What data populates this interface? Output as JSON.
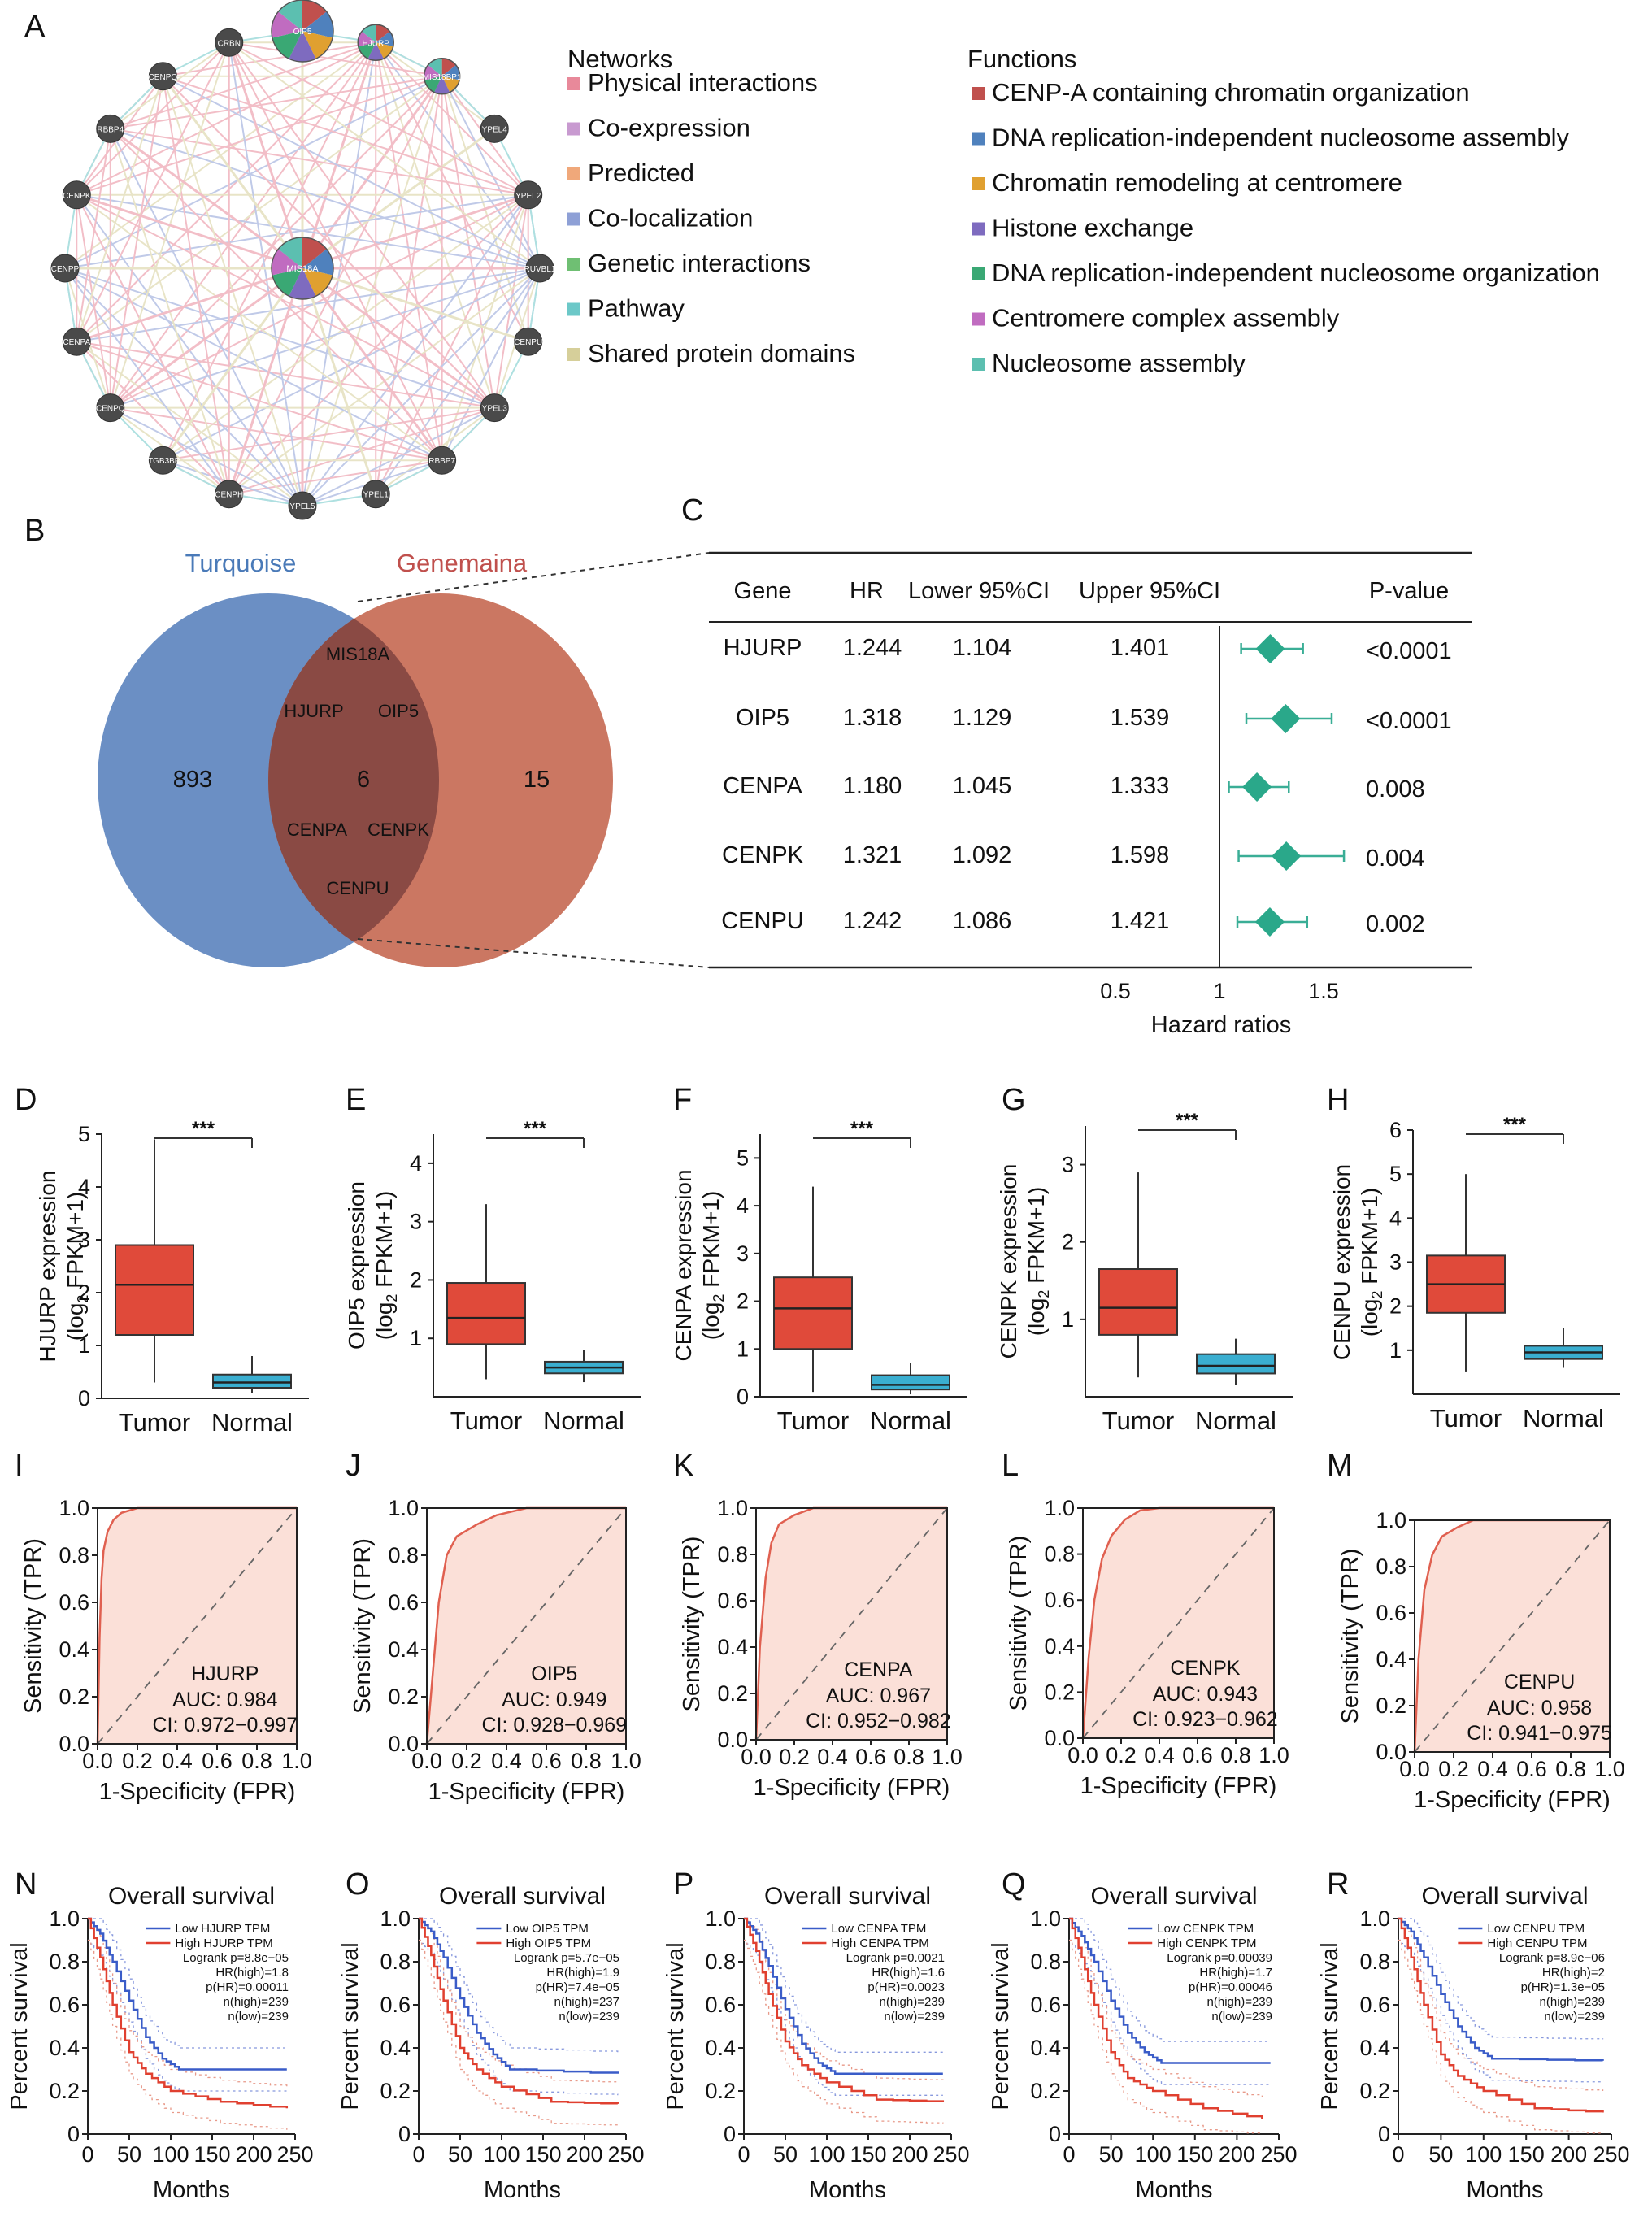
{
  "panel_letters": [
    "A",
    "B",
    "C",
    "D",
    "E",
    "F",
    "G",
    "H",
    "I",
    "J",
    "K",
    "L",
    "M",
    "N",
    "O",
    "P",
    "Q",
    "R"
  ],
  "network": {
    "center_gene": "MIS18A",
    "genes": [
      "OIP5",
      "HJURP",
      "MIS18BP1",
      "YPEL4",
      "YPEL2",
      "RUVBL1",
      "CENPU",
      "YPEL3",
      "RBBP7",
      "YPEL1",
      "YPEL5",
      "CENPH",
      "ITGB3BP",
      "CENPQ",
      "CENPA",
      "CENPP",
      "CENPK",
      "RBBP4",
      "CENPQ",
      "CRBN"
    ],
    "networks_title": "Networks",
    "networks_legend": [
      {
        "label": "Physical interactions",
        "color": "#e8899a"
      },
      {
        "label": "Co-expression",
        "color": "#c89ad0"
      },
      {
        "label": "Predicted",
        "color": "#f0a87a"
      },
      {
        "label": "Co-localization",
        "color": "#8ea0d6"
      },
      {
        "label": "Genetic interactions",
        "color": "#6fbf73"
      },
      {
        "label": "Pathway",
        "color": "#6cc8c8"
      },
      {
        "label": "Shared protein domains",
        "color": "#d6cf9a"
      }
    ],
    "functions_title": "Functions",
    "functions_legend": [
      {
        "label": "CENP-A containing chromatin organization",
        "color": "#c0504d"
      },
      {
        "label": "DNA replication-independent nucleosome assembly",
        "color": "#4f81bd"
      },
      {
        "label": "Chromatin remodeling at centromere",
        "color": "#e0a030"
      },
      {
        "label": "Histone exchange",
        "color": "#7e6bbf"
      },
      {
        "label": "DNA replication-independent nucleosome organization",
        "color": "#3aa874"
      },
      {
        "label": "Centromere complex assembly",
        "color": "#c06cc0"
      },
      {
        "label": "Nucleosome assembly",
        "color": "#5cbfb0"
      }
    ]
  },
  "venn": {
    "left_title": "Turquoise",
    "right_title": "Genemaina",
    "left_count": "893",
    "center_count": "6",
    "right_count": "15",
    "shared_genes": [
      "MIS18A",
      "HJURP",
      "OIP5",
      "CENPA",
      "CENPK",
      "CENPU"
    ]
  },
  "chart_data": [
    {
      "panel": "C",
      "type": "table",
      "headers": [
        "Gene",
        "HR",
        "Lower 95%CI",
        "Upper 95%CI",
        "P-value"
      ],
      "rows": [
        {
          "gene": "HJURP",
          "hr": "1.244",
          "lower": "1.104",
          "upper": "1.401",
          "p": "<0.0001",
          "v": 1.244,
          "lo": 1.104,
          "hi": 1.401
        },
        {
          "gene": "OIP5",
          "hr": "1.318",
          "lower": "1.129",
          "upper": "1.539",
          "p": "<0.0001",
          "v": 1.318,
          "lo": 1.129,
          "hi": 1.539
        },
        {
          "gene": "CENPA",
          "hr": "1.180",
          "lower": "1.045",
          "upper": "1.333",
          "p": "0.008",
          "v": 1.18,
          "lo": 1.045,
          "hi": 1.333
        },
        {
          "gene": "CENPK",
          "hr": "1.321",
          "lower": "1.092",
          "upper": "1.598",
          "p": "0.004",
          "v": 1.321,
          "lo": 1.092,
          "hi": 1.598
        },
        {
          "gene": "CENPU",
          "hr": "1.242",
          "lower": "1.086",
          "upper": "1.421",
          "p": "0.002",
          "v": 1.242,
          "lo": 1.086,
          "hi": 1.421
        }
      ],
      "xlabel": "Hazard ratios",
      "xticks": [
        "0.5",
        "1",
        "1.5"
      ],
      "xlim": [
        0.5,
        1.5
      ]
    },
    {
      "panel": "D",
      "type": "box",
      "ylabel_main": "HJURP expression",
      "ylabel_sub": "(log",
      "ylabel_sub2": "2",
      "ylabel_sub3": " FPKM+1)",
      "categories": [
        "Tumor",
        "Normal"
      ],
      "ylim": [
        0,
        5
      ],
      "yticks": [
        "0",
        "1",
        "2",
        "3",
        "4",
        "5"
      ],
      "sig": "***",
      "boxes": [
        {
          "q1": 1.2,
          "median": 2.15,
          "q3": 2.9,
          "lo": 0.3,
          "hi": 4.9
        },
        {
          "q1": 0.2,
          "median": 0.3,
          "q3": 0.45,
          "lo": 0.1,
          "hi": 0.8
        }
      ]
    },
    {
      "panel": "E",
      "type": "box",
      "ylabel_main": "OIP5 expression",
      "ylabel_sub": "(log",
      "ylabel_sub2": "2",
      "ylabel_sub3": " FPKM+1)",
      "categories": [
        "Tumor",
        "Normal"
      ],
      "ylim": [
        0,
        4.5
      ],
      "yticks": [
        "1",
        "2",
        "3",
        "4"
      ],
      "sig": "***",
      "boxes": [
        {
          "q1": 0.9,
          "median": 1.35,
          "q3": 1.95,
          "lo": 0.3,
          "hi": 3.3
        },
        {
          "q1": 0.4,
          "median": 0.5,
          "q3": 0.6,
          "lo": 0.25,
          "hi": 0.8
        }
      ]
    },
    {
      "panel": "F",
      "type": "box",
      "ylabel_main": "CENPA expression",
      "ylabel_sub": "(log",
      "ylabel_sub2": "2",
      "ylabel_sub3": " FPKM+1)",
      "categories": [
        "Tumor",
        "Normal"
      ],
      "ylim": [
        0,
        5.5
      ],
      "yticks": [
        "0",
        "1",
        "2",
        "3",
        "4",
        "5"
      ],
      "sig": "***",
      "boxes": [
        {
          "q1": 1.0,
          "median": 1.85,
          "q3": 2.5,
          "lo": 0.1,
          "hi": 4.4
        },
        {
          "q1": 0.15,
          "median": 0.25,
          "q3": 0.45,
          "lo": 0.05,
          "hi": 0.7
        }
      ]
    },
    {
      "panel": "G",
      "type": "box",
      "ylabel_main": "CENPK expression",
      "ylabel_sub": "(log",
      "ylabel_sub2": "2",
      "ylabel_sub3": " FPKM+1)",
      "categories": [
        "Tumor",
        "Normal"
      ],
      "ylim": [
        0,
        3.5
      ],
      "yticks": [
        "1",
        "2",
        "3"
      ],
      "sig": "***",
      "boxes": [
        {
          "q1": 0.8,
          "median": 1.15,
          "q3": 1.65,
          "lo": 0.25,
          "hi": 2.9
        },
        {
          "q1": 0.3,
          "median": 0.4,
          "q3": 0.55,
          "lo": 0.15,
          "hi": 0.75
        }
      ]
    },
    {
      "panel": "H",
      "type": "box",
      "ylabel_main": "CENPU expression",
      "ylabel_sub": "(log",
      "ylabel_sub2": "2",
      "ylabel_sub3": " FPKM+1)",
      "categories": [
        "Tumor",
        "Normal"
      ],
      "ylim": [
        0,
        6
      ],
      "yticks": [
        "1",
        "2",
        "3",
        "4",
        "5",
        "6"
      ],
      "sig": "***",
      "boxes": [
        {
          "q1": 1.85,
          "median": 2.5,
          "q3": 3.15,
          "lo": 0.5,
          "hi": 5.0
        },
        {
          "q1": 0.8,
          "median": 0.95,
          "q3": 1.1,
          "lo": 0.6,
          "hi": 1.5
        }
      ]
    },
    {
      "panel": "I",
      "type": "roc",
      "gene": "HJURP",
      "auc": "AUC: 0.984",
      "ci": "CI: 0.972−0.997",
      "ylabel": "Sensitivity (TPR)",
      "xlabel": "1-Specificity (FPR)",
      "yticks": [
        "0.0",
        "0.2",
        "0.4",
        "0.6",
        "0.8",
        "1.0"
      ],
      "xticks": [
        "0.0",
        "0.2",
        "0.4",
        "0.6",
        "0.8",
        "1.0"
      ],
      "curve": [
        [
          0,
          0
        ],
        [
          0.01,
          0.45
        ],
        [
          0.02,
          0.7
        ],
        [
          0.03,
          0.82
        ],
        [
          0.05,
          0.9
        ],
        [
          0.08,
          0.95
        ],
        [
          0.12,
          0.98
        ],
        [
          0.2,
          1.0
        ],
        [
          1,
          1
        ]
      ]
    },
    {
      "panel": "J",
      "type": "roc",
      "gene": "OIP5",
      "auc": "AUC: 0.949",
      "ci": "CI: 0.928−0.969",
      "ylabel": "Sensitivity (TPR)",
      "xlabel": "1-Specificity (FPR)",
      "yticks": [
        "0.0",
        "0.2",
        "0.4",
        "0.6",
        "0.8",
        "1.0"
      ],
      "xticks": [
        "0.0",
        "0.2",
        "0.4",
        "0.6",
        "0.8",
        "1.0"
      ],
      "curve": [
        [
          0,
          0
        ],
        [
          0.03,
          0.3
        ],
        [
          0.06,
          0.6
        ],
        [
          0.1,
          0.8
        ],
        [
          0.15,
          0.88
        ],
        [
          0.25,
          0.93
        ],
        [
          0.35,
          0.97
        ],
        [
          0.5,
          1.0
        ],
        [
          1,
          1
        ]
      ]
    },
    {
      "panel": "K",
      "type": "roc",
      "gene": "CENPA",
      "auc": "AUC: 0.967",
      "ci": "CI: 0.952−0.982",
      "ylabel": "Sensitivity (TPR)",
      "xlabel": "1-Specificity (FPR)",
      "yticks": [
        "0.0",
        "0.2",
        "0.4",
        "0.6",
        "0.8",
        "1.0"
      ],
      "xticks": [
        "0.0",
        "0.2",
        "0.4",
        "0.6",
        "0.8",
        "1.0"
      ],
      "curve": [
        [
          0,
          0
        ],
        [
          0.02,
          0.4
        ],
        [
          0.05,
          0.7
        ],
        [
          0.08,
          0.85
        ],
        [
          0.12,
          0.93
        ],
        [
          0.2,
          0.97
        ],
        [
          0.3,
          1.0
        ],
        [
          1,
          1
        ]
      ]
    },
    {
      "panel": "L",
      "type": "roc",
      "gene": "CENPK",
      "auc": "AUC: 0.943",
      "ci": "CI: 0.923−0.962",
      "ylabel": "Sensitivity (TPR)",
      "xlabel": "1-Specificity (FPR)",
      "yticks": [
        "0.0",
        "0.2",
        "0.4",
        "0.6",
        "0.8",
        "1.0"
      ],
      "xticks": [
        "0.0",
        "0.2",
        "0.4",
        "0.6",
        "0.8",
        "1.0"
      ],
      "curve": [
        [
          0,
          0
        ],
        [
          0.03,
          0.35
        ],
        [
          0.06,
          0.6
        ],
        [
          0.1,
          0.78
        ],
        [
          0.15,
          0.88
        ],
        [
          0.22,
          0.95
        ],
        [
          0.3,
          0.99
        ],
        [
          0.4,
          1.0
        ],
        [
          1,
          1
        ]
      ]
    },
    {
      "panel": "M",
      "type": "roc",
      "gene": "CENPU",
      "auc": "AUC: 0.958",
      "ci": "CI: 0.941−0.975",
      "ylabel": "Sensitivity (TPR)",
      "xlabel": "1-Specificity (FPR)",
      "yticks": [
        "0.0",
        "0.2",
        "0.4",
        "0.6",
        "0.8",
        "1.0"
      ],
      "xticks": [
        "0.0",
        "0.2",
        "0.4",
        "0.6",
        "0.8",
        "1.0"
      ],
      "curve": [
        [
          0,
          0
        ],
        [
          0.02,
          0.4
        ],
        [
          0.05,
          0.7
        ],
        [
          0.09,
          0.85
        ],
        [
          0.14,
          0.93
        ],
        [
          0.22,
          0.97
        ],
        [
          0.3,
          1.0
        ],
        [
          1,
          1
        ]
      ]
    },
    {
      "panel": "N",
      "type": "survival",
      "title": "Overall survival",
      "ylabel": "Percent survival",
      "xlabel": "Months",
      "yticks": [
        "0",
        "0.2",
        "0.4",
        "0.6",
        "0.8",
        "1.0"
      ],
      "xticks": [
        "0",
        "50",
        "100",
        "150",
        "200",
        "250"
      ],
      "xlim": [
        0,
        250
      ],
      "legend": [
        "Low HJURP TPM",
        "High HJURP TPM"
      ],
      "stats": [
        "Logrank p=8.8e−05",
        "HR(high)=1.8",
        "p(HR)=0.00011",
        "n(high)=239",
        "n(low)=239"
      ],
      "low": [
        [
          0,
          1
        ],
        [
          15,
          0.93
        ],
        [
          30,
          0.8
        ],
        [
          50,
          0.62
        ],
        [
          70,
          0.45
        ],
        [
          90,
          0.35
        ],
        [
          110,
          0.3
        ],
        [
          240,
          0.3
        ]
      ],
      "high": [
        [
          0,
          1
        ],
        [
          15,
          0.82
        ],
        [
          30,
          0.6
        ],
        [
          50,
          0.38
        ],
        [
          70,
          0.28
        ],
        [
          100,
          0.2
        ],
        [
          160,
          0.15
        ],
        [
          240,
          0.12
        ]
      ]
    },
    {
      "panel": "O",
      "type": "survival",
      "title": "Overall survival",
      "ylabel": "Percent survival",
      "xlabel": "Months",
      "yticks": [
        "0",
        "0.2",
        "0.4",
        "0.6",
        "0.8",
        "1.0"
      ],
      "xticks": [
        "0",
        "50",
        "100",
        "150",
        "200",
        "250"
      ],
      "xlim": [
        0,
        250
      ],
      "legend": [
        "Low OIP5 TPM",
        "High OIP5 TPM"
      ],
      "stats": [
        "Logrank p=5.7e−05",
        "HR(high)=1.9",
        "p(HR)=7.4e−05",
        "n(high)=237",
        "n(low)=239"
      ],
      "low": [
        [
          0,
          1
        ],
        [
          15,
          0.94
        ],
        [
          30,
          0.82
        ],
        [
          50,
          0.63
        ],
        [
          70,
          0.47
        ],
        [
          90,
          0.37
        ],
        [
          110,
          0.3
        ],
        [
          240,
          0.28
        ]
      ],
      "high": [
        [
          0,
          1
        ],
        [
          15,
          0.83
        ],
        [
          30,
          0.62
        ],
        [
          50,
          0.4
        ],
        [
          70,
          0.3
        ],
        [
          100,
          0.22
        ],
        [
          160,
          0.15
        ],
        [
          240,
          0.14
        ]
      ]
    },
    {
      "panel": "P",
      "type": "survival",
      "title": "Overall survival",
      "ylabel": "Percent survival",
      "xlabel": "Months",
      "yticks": [
        "0",
        "0.2",
        "0.4",
        "0.6",
        "0.8",
        "1.0"
      ],
      "xticks": [
        "0",
        "50",
        "100",
        "150",
        "200",
        "250"
      ],
      "xlim": [
        0,
        250
      ],
      "legend": [
        "Low CENPA TPM",
        "High CENPA TPM"
      ],
      "stats": [
        "Logrank p=0.0021",
        "HR(high)=1.6",
        "p(HR)=0.0023",
        "n(high)=239",
        "n(low)=239"
      ],
      "low": [
        [
          0,
          1
        ],
        [
          15,
          0.93
        ],
        [
          30,
          0.78
        ],
        [
          50,
          0.58
        ],
        [
          70,
          0.42
        ],
        [
          90,
          0.33
        ],
        [
          110,
          0.28
        ],
        [
          240,
          0.28
        ]
      ],
      "high": [
        [
          0,
          1
        ],
        [
          15,
          0.85
        ],
        [
          30,
          0.65
        ],
        [
          50,
          0.43
        ],
        [
          70,
          0.32
        ],
        [
          100,
          0.24
        ],
        [
          160,
          0.16
        ],
        [
          240,
          0.15
        ]
      ]
    },
    {
      "panel": "Q",
      "type": "survival",
      "title": "Overall survival",
      "ylabel": "Percent survival",
      "xlabel": "Months",
      "yticks": [
        "0",
        "0.2",
        "0.4",
        "0.6",
        "0.8",
        "1.0"
      ],
      "xticks": [
        "0",
        "50",
        "100",
        "150",
        "200",
        "250"
      ],
      "xlim": [
        0,
        250
      ],
      "legend": [
        "Low CENPK TPM",
        "High CENPK TPM"
      ],
      "stats": [
        "Logrank p=0.00039",
        "HR(high)=1.7",
        "p(HR)=0.00046",
        "n(high)=239",
        "n(low)=239"
      ],
      "low": [
        [
          0,
          1
        ],
        [
          15,
          0.92
        ],
        [
          30,
          0.8
        ],
        [
          50,
          0.62
        ],
        [
          70,
          0.47
        ],
        [
          90,
          0.38
        ],
        [
          110,
          0.33
        ],
        [
          240,
          0.33
        ]
      ],
      "high": [
        [
          0,
          1
        ],
        [
          15,
          0.82
        ],
        [
          30,
          0.6
        ],
        [
          50,
          0.38
        ],
        [
          70,
          0.26
        ],
        [
          100,
          0.2
        ],
        [
          160,
          0.12
        ],
        [
          230,
          0.07
        ]
      ]
    },
    {
      "panel": "R",
      "type": "survival",
      "title": "Overall survival",
      "ylabel": "Percent survival",
      "xlabel": "Months",
      "yticks": [
        "0",
        "0.2",
        "0.4",
        "0.6",
        "0.8",
        "1.0"
      ],
      "xticks": [
        "0",
        "50",
        "100",
        "150",
        "200",
        "250"
      ],
      "xlim": [
        0,
        250
      ],
      "legend": [
        "Low CENPU TPM",
        "High CENPU TPM"
      ],
      "stats": [
        "Logrank p=8.9e−06",
        "HR(high)=2",
        "p(HR)=1.3e−05",
        "n(high)=239",
        "n(low)=239"
      ],
      "low": [
        [
          0,
          1
        ],
        [
          15,
          0.94
        ],
        [
          30,
          0.82
        ],
        [
          50,
          0.65
        ],
        [
          70,
          0.5
        ],
        [
          90,
          0.4
        ],
        [
          110,
          0.35
        ],
        [
          240,
          0.34
        ]
      ],
      "high": [
        [
          0,
          1
        ],
        [
          15,
          0.82
        ],
        [
          30,
          0.6
        ],
        [
          50,
          0.37
        ],
        [
          70,
          0.27
        ],
        [
          100,
          0.2
        ],
        [
          160,
          0.12
        ],
        [
          240,
          0.1
        ]
      ]
    }
  ]
}
